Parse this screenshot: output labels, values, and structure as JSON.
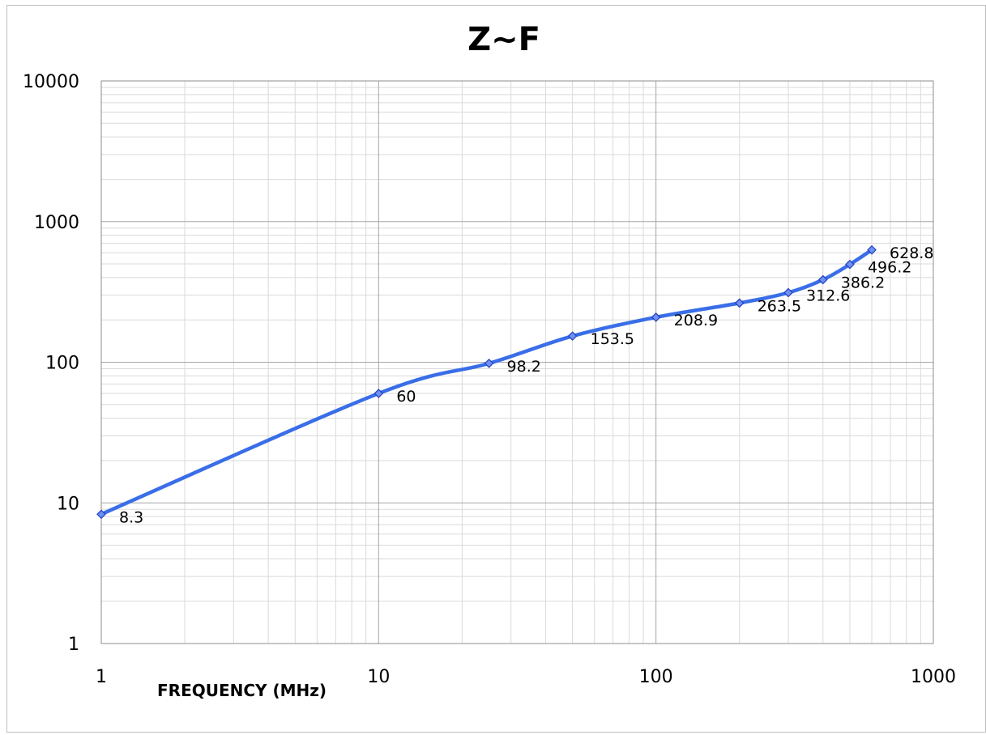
{
  "chart_data": {
    "type": "line",
    "title": "Z~F",
    "xlabel": "FREQUENCY (MHz)",
    "ylabel": "",
    "x_scale": "log",
    "y_scale": "log",
    "xlim": [
      1,
      1000
    ],
    "ylim": [
      1,
      10000
    ],
    "x_ticks": [
      "1",
      "10",
      "100",
      "1000"
    ],
    "y_ticks": [
      "1",
      "10",
      "100",
      "1000",
      "10000"
    ],
    "grid": true,
    "legend": "none",
    "series": [
      {
        "color": "#3a6ee8",
        "marker": "diamond",
        "points": [
          {
            "x": 1,
            "y": 8.3,
            "label": "8.3"
          },
          {
            "x": 10,
            "y": 60,
            "label": "60"
          },
          {
            "x": 25,
            "y": 98.2,
            "label": "98.2"
          },
          {
            "x": 50,
            "y": 153.5,
            "label": "153.5"
          },
          {
            "x": 100,
            "y": 208.9,
            "label": "208.9"
          },
          {
            "x": 200,
            "y": 263.5,
            "label": "263.5"
          },
          {
            "x": 300,
            "y": 312.6,
            "label": "312.6"
          },
          {
            "x": 400,
            "y": 386.2,
            "label": "386.2"
          },
          {
            "x": 500,
            "y": 496.2,
            "label": "496.2"
          },
          {
            "x": 600,
            "y": 628.8,
            "label": "628.8"
          }
        ]
      }
    ]
  }
}
